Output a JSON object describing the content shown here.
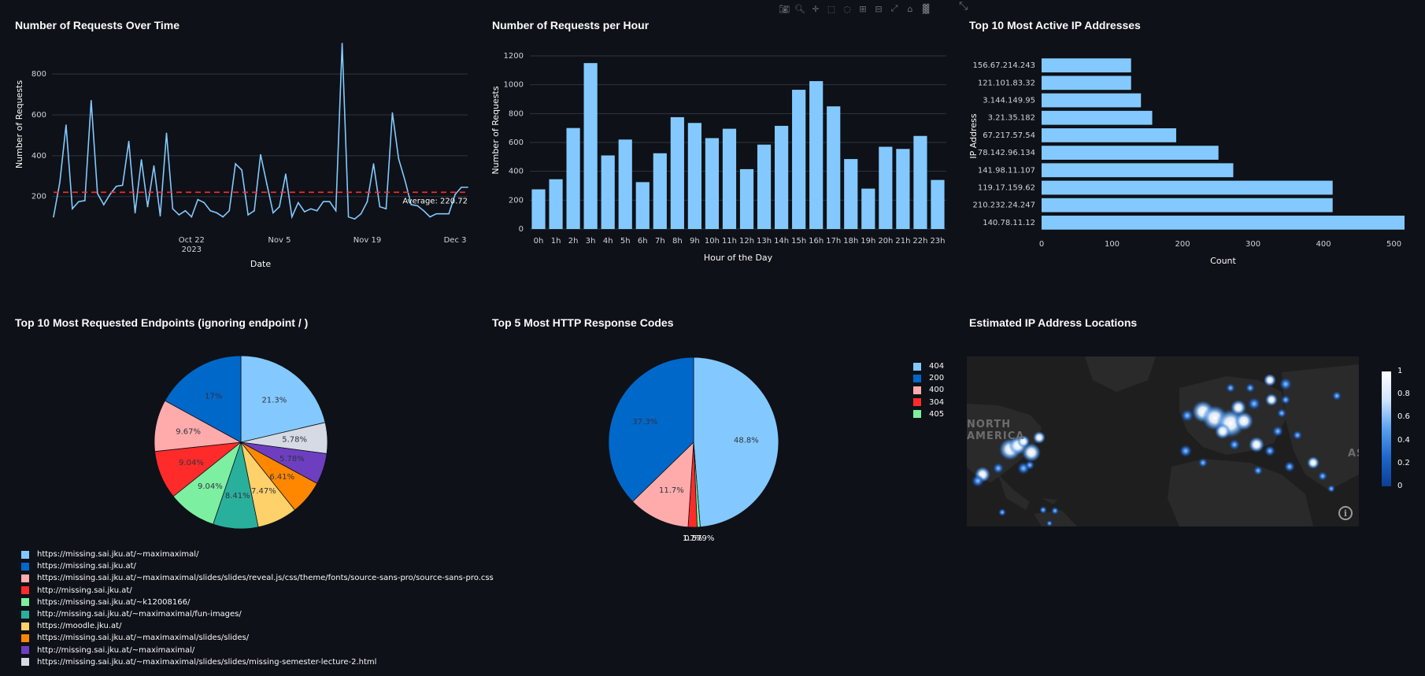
{
  "toolbar": {
    "icons": [
      "camera-icon",
      "zoom-icon",
      "pan-icon",
      "box-select-icon",
      "lasso-icon",
      "zoom-in-icon",
      "zoom-out-icon",
      "autoscale-icon",
      "home-icon",
      "plotly-logo-icon"
    ]
  },
  "panels": {
    "requests_over_time": {
      "title": "Number of Requests Over Time"
    },
    "requests_per_hour": {
      "title": "Number of Requests per Hour"
    },
    "top_ips": {
      "title": "Top 10 Most Active IP Addresses"
    },
    "top_endpoints": {
      "title": "Top 10 Most Requested Endpoints (ignoring endpoint / )"
    },
    "top_codes": {
      "title": "Top 5 Most HTTP Response Codes"
    },
    "locations": {
      "title": "Estimated IP Address Locations"
    }
  },
  "chart_data": [
    {
      "type": "line",
      "title": "Number of Requests Over Time",
      "xlabel": "Date",
      "ylabel": "Number of Requests",
      "ylim": [
        60,
        970
      ],
      "yticks": [
        200,
        400,
        600,
        800
      ],
      "xticks": [
        {
          "index": 22,
          "line1": "Oct 22",
          "line2": "2023"
        },
        {
          "index": 36,
          "line1": "Nov 5",
          "line2": ""
        },
        {
          "index": 50,
          "line1": "Nov 19",
          "line2": ""
        },
        {
          "index": 64,
          "line1": "Dec 3",
          "line2": ""
        }
      ],
      "values": [
        100,
        270,
        550,
        140,
        175,
        180,
        670,
        215,
        160,
        210,
        250,
        255,
        470,
        120,
        380,
        150,
        350,
        105,
        510,
        140,
        110,
        130,
        100,
        185,
        170,
        130,
        120,
        100,
        130,
        360,
        330,
        110,
        130,
        405,
        260,
        120,
        150,
        310,
        100,
        170,
        125,
        140,
        130,
        175,
        175,
        130,
        950,
        100,
        90,
        115,
        175,
        360,
        150,
        140,
        610,
        385,
        280,
        160,
        155,
        130,
        100,
        115,
        115,
        115,
        210,
        245,
        245
      ],
      "average": 220.72,
      "average_label": "Average: 220.72"
    },
    {
      "type": "bar",
      "title": "Number of Requests per Hour",
      "xlabel": "Hour of the Day",
      "ylabel": "Number of Requests",
      "ylim": [
        0,
        1260
      ],
      "yticks": [
        0,
        200,
        400,
        600,
        800,
        1000,
        1200
      ],
      "categories": [
        "0h",
        "1h",
        "2h",
        "3h",
        "4h",
        "5h",
        "6h",
        "7h",
        "8h",
        "9h",
        "10h",
        "11h",
        "12h",
        "13h",
        "14h",
        "15h",
        "16h",
        "17h",
        "18h",
        "19h",
        "20h",
        "21h",
        "22h",
        "23h"
      ],
      "values": [
        275,
        345,
        700,
        1150,
        510,
        620,
        325,
        525,
        775,
        735,
        630,
        695,
        415,
        585,
        715,
        965,
        1025,
        850,
        485,
        280,
        570,
        555,
        645,
        340
      ]
    },
    {
      "type": "bar",
      "orientation": "horizontal",
      "title": "Top 10 Most Active IP Addresses",
      "xlabel": "Count",
      "ylabel": "IP Address",
      "xlim": [
        0,
        515
      ],
      "xticks": [
        0,
        100,
        200,
        300,
        400,
        500
      ],
      "categories": [
        "156.67.214.243",
        "121.101.83.32",
        "3.144.149.95",
        "3.21.35.182",
        "67.217.57.54",
        "78.142.96.134",
        "141.98.11.107",
        "119.17.159.62",
        "210.232.24.247",
        "140.78.11.12"
      ],
      "values": [
        127,
        127,
        141,
        157,
        191,
        251,
        272,
        413,
        413,
        515
      ]
    },
    {
      "type": "pie",
      "title": "Top 10 Most Requested Endpoints (ignoring endpoint / )",
      "labels": [
        "https://missing.sai.jku.at/~maximaximal/",
        "https://missing.sai.jku.at/",
        "https://missing.sai.jku.at/~maximaximal/slides/slides/reveal.js/css/theme/fonts/source-sans-pro/source-sans-pro.css",
        "http://missing.sai.jku.at/",
        "https://missing.sai.jku.at/~k12008166/",
        "http://missing.sai.jku.at/~maximaximal/fun-images/",
        "https://moodle.jku.at/",
        "https://missing.sai.jku.at/~maximaximal/slides/slides/",
        "http://missing.sai.jku.at/~maximaximal/",
        "https://missing.sai.jku.at/~maximaximal/slides/slides/missing-semester-lecture-2.html"
      ],
      "values": [
        21.3,
        17,
        9.67,
        9.04,
        9.04,
        8.41,
        7.47,
        6.41,
        5.78,
        5.78
      ],
      "value_labels": [
        "21.3%",
        "17%",
        "9.67%",
        "9.04%",
        "9.04%",
        "8.41%",
        "7.47%",
        "6.41%",
        "5.78%",
        "5.78%"
      ],
      "colors": [
        "#83c9ff",
        "#0068c9",
        "#ffabab",
        "#ff2b2b",
        "#7defa1",
        "#29b09d",
        "#ffd16a",
        "#ff8700",
        "#6d3fc0",
        "#d5dae5"
      ],
      "draw_order": [
        0,
        9,
        8,
        7,
        6,
        5,
        4,
        3,
        2,
        1
      ]
    },
    {
      "type": "pie",
      "title": "Top 5 Most HTTP Response Codes",
      "labels": [
        "404",
        "200",
        "400",
        "304",
        "405"
      ],
      "values": [
        48.8,
        37.3,
        11.7,
        1.7,
        0.579
      ],
      "value_labels": [
        "48.8%",
        "37.3%",
        "11.7%",
        "1.7%",
        "0.579%"
      ],
      "colors": [
        "#83c9ff",
        "#0068c9",
        "#ffabab",
        "#ff2b2b",
        "#7defa1"
      ]
    }
  ],
  "map": {
    "colorbar_ticks": [
      "1",
      "0.8",
      "0.6",
      "0.4",
      "0.2",
      "0"
    ],
    "colorbar_values": [
      1,
      0.8,
      0.6,
      0.4,
      0.2,
      0
    ],
    "labels": [
      "NORTH",
      "AMERICA",
      "AS"
    ],
    "info_symbol": "i"
  },
  "colors": {
    "background": "#0e1117",
    "line": "#83c9ff",
    "average_line": "#ff2b2b",
    "grid": "#31333f"
  }
}
